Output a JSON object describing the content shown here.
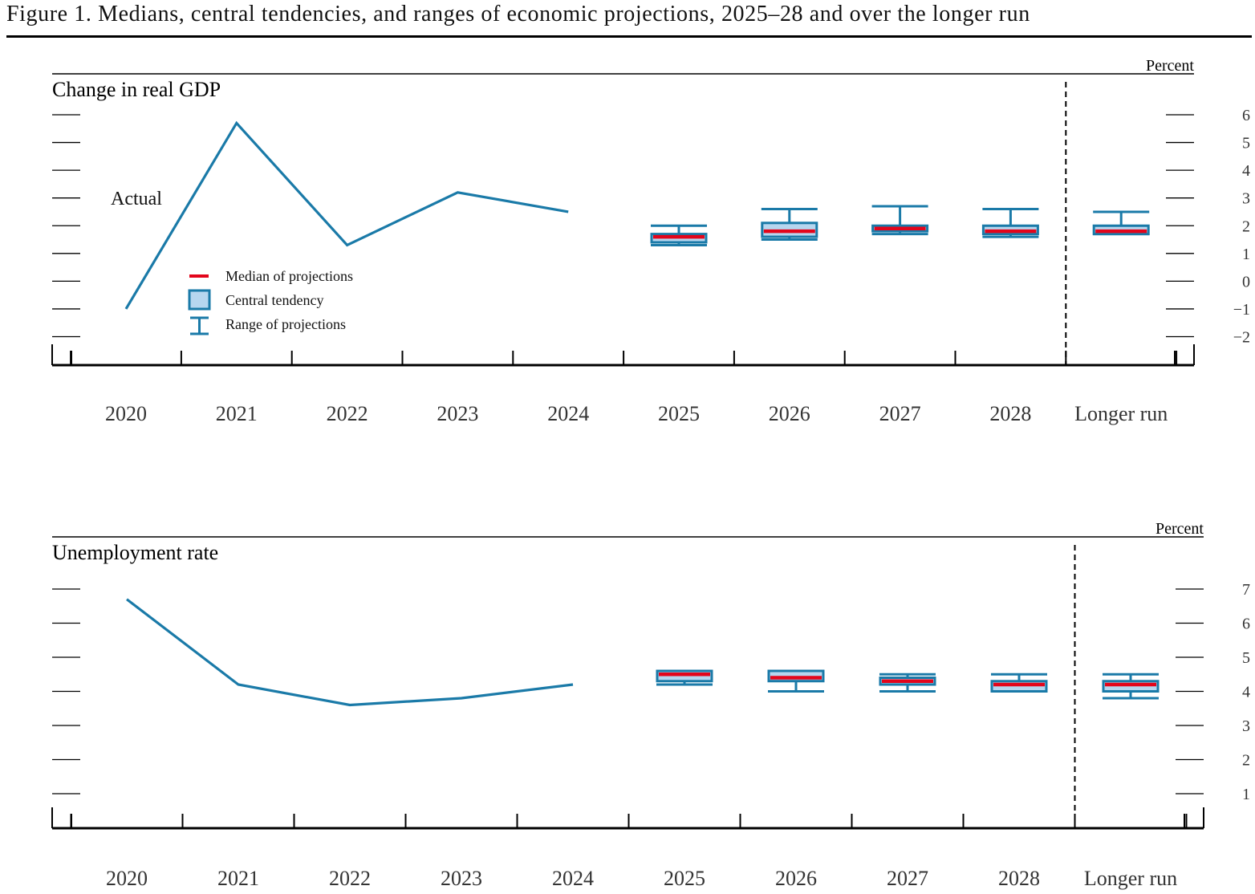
{
  "figure": {
    "title": "Figure 1. Medians, central tendencies, and ranges of economic projections, 2025–28 and over the longer run"
  },
  "colors": {
    "line": "#1a7aa8",
    "median": "#e3051b",
    "box_fill": "#b6d6ef",
    "axis": "#000000",
    "text": "#333333"
  },
  "legend": {
    "median": "Median of projections",
    "central": "Central tendency",
    "range": "Range of projections"
  },
  "chart_data": [
    {
      "type": "line",
      "title": "Change in real GDP",
      "unit": "Percent",
      "annotation": "Actual",
      "categories": [
        "2020",
        "2021",
        "2022",
        "2023",
        "2024",
        "2025",
        "2026",
        "2027",
        "2028",
        "Longer run"
      ],
      "ylim": [
        -2,
        6
      ],
      "yticks": [
        6,
        5,
        4,
        3,
        2,
        1,
        0,
        -1,
        -2
      ],
      "ytick_labels": [
        "6",
        "5",
        "4",
        "3",
        "2",
        "1",
        "0",
        "−1",
        "−2"
      ],
      "actual": [
        {
          "x": "2020",
          "y": -1.0
        },
        {
          "x": "2021",
          "y": 5.7
        },
        {
          "x": "2022",
          "y": 1.3
        },
        {
          "x": "2023",
          "y": 3.2
        },
        {
          "x": "2024",
          "y": 2.5
        }
      ],
      "projections": [
        {
          "x": "2025",
          "range_low": 1.3,
          "range_high": 2.0,
          "ct_low": 1.4,
          "ct_high": 1.7,
          "median": 1.6
        },
        {
          "x": "2026",
          "range_low": 1.5,
          "range_high": 2.6,
          "ct_low": 1.6,
          "ct_high": 2.1,
          "median": 1.8
        },
        {
          "x": "2027",
          "range_low": 1.7,
          "range_high": 2.7,
          "ct_low": 1.8,
          "ct_high": 2.0,
          "median": 1.9
        },
        {
          "x": "2028",
          "range_low": 1.6,
          "range_high": 2.6,
          "ct_low": 1.7,
          "ct_high": 2.0,
          "median": 1.8
        },
        {
          "x": "Longer run",
          "range_low": 1.7,
          "range_high": 2.5,
          "ct_low": 1.7,
          "ct_high": 2.0,
          "median": 1.8
        }
      ]
    },
    {
      "type": "line",
      "title": "Unemployment rate",
      "unit": "Percent",
      "categories": [
        "2020",
        "2021",
        "2022",
        "2023",
        "2024",
        "2025",
        "2026",
        "2027",
        "2028",
        "Longer run"
      ],
      "ylim": [
        1,
        7
      ],
      "yticks": [
        7,
        6,
        5,
        4,
        3,
        2,
        1
      ],
      "ytick_labels": [
        "7",
        "6",
        "5",
        "4",
        "3",
        "2",
        "1"
      ],
      "actual": [
        {
          "x": "2020",
          "y": 6.7
        },
        {
          "x": "2021",
          "y": 4.2
        },
        {
          "x": "2022",
          "y": 3.6
        },
        {
          "x": "2023",
          "y": 3.8
        },
        {
          "x": "2024",
          "y": 4.2
        }
      ],
      "projections": [
        {
          "x": "2025",
          "range_low": 4.2,
          "range_high": 4.6,
          "ct_low": 4.3,
          "ct_high": 4.6,
          "median": 4.5
        },
        {
          "x": "2026",
          "range_low": 4.0,
          "range_high": 4.6,
          "ct_low": 4.3,
          "ct_high": 4.6,
          "median": 4.4
        },
        {
          "x": "2027",
          "range_low": 4.0,
          "range_high": 4.5,
          "ct_low": 4.2,
          "ct_high": 4.4,
          "median": 4.3
        },
        {
          "x": "2028",
          "range_low": 4.0,
          "range_high": 4.5,
          "ct_low": 4.0,
          "ct_high": 4.3,
          "median": 4.2
        },
        {
          "x": "Longer run",
          "range_low": 3.8,
          "range_high": 4.5,
          "ct_low": 4.0,
          "ct_high": 4.3,
          "median": 4.2
        }
      ]
    }
  ]
}
